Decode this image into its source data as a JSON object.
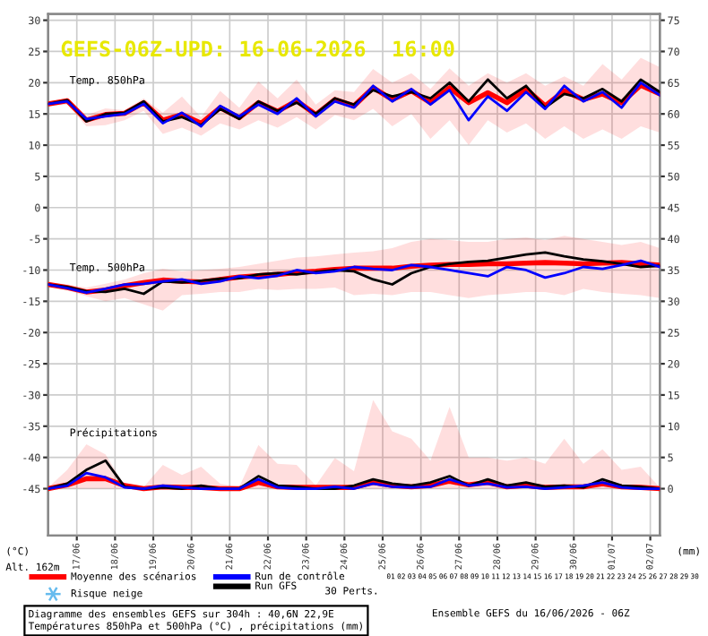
{
  "chart_data": {
    "type": "line",
    "title": "GEFS-06Z-UPD: 16-06-2026  16:00",
    "ylabel": "(°C)",
    "y2label": "(mm)",
    "x": [
      "2026-06-16T06:00",
      "2026-06-16T18:00",
      "2026-06-17T06:00",
      "2026-06-17T18:00",
      "2026-06-18T06:00",
      "2026-06-18T18:00",
      "2026-06-19T06:00",
      "2026-06-19T18:00",
      "2026-06-20T06:00",
      "2026-06-20T18:00",
      "2026-06-21T06:00",
      "2026-06-21T18:00",
      "2026-06-22T06:00",
      "2026-06-22T18:00",
      "2026-06-23T06:00",
      "2026-06-23T18:00",
      "2026-06-24T06:00",
      "2026-06-24T18:00",
      "2026-06-25T06:00",
      "2026-06-25T18:00",
      "2026-06-26T06:00",
      "2026-06-26T18:00",
      "2026-06-27T06:00",
      "2026-06-27T18:00",
      "2026-06-28T06:00",
      "2026-06-28T18:00",
      "2026-06-29T06:00",
      "2026-06-29T18:00",
      "2026-06-30T06:00",
      "2026-06-30T18:00",
      "2026-07-01T06:00",
      "2026-07-01T18:00",
      "2026-07-02T06:00"
    ],
    "series": [
      {
        "name": "Moyenne des scénarios",
        "color": "#ff0000",
        "values": [
          16.6,
          17.1,
          14.0,
          14.9,
          15.1,
          16.8,
          14.0,
          14.9,
          13.5,
          16.0,
          14.4,
          16.8,
          15.4,
          17.1,
          14.9,
          17.3,
          16.3,
          19.2,
          17.3,
          18.7,
          16.8,
          19.2,
          16.8,
          18.4,
          16.8,
          19.0,
          16.3,
          18.7,
          17.3,
          18.2,
          16.8,
          19.6,
          18.2
        ],
        "upper": [
          16.8,
          17.6,
          14.8,
          15.9,
          15.6,
          17.5,
          15.2,
          17.8,
          14.5,
          18.7,
          16.0,
          20.2,
          17.5,
          20.5,
          16.5,
          18.8,
          18.5,
          22.2,
          20.0,
          21.5,
          19.0,
          22.3,
          19.5,
          21.5,
          20.0,
          21.5,
          19.5,
          21.0,
          19.5,
          23.0,
          20.5,
          24.0,
          22.5
        ],
        "lower": [
          16.2,
          16.5,
          13.0,
          13.2,
          14.0,
          15.5,
          11.8,
          12.8,
          11.5,
          13.5,
          12.5,
          14.0,
          12.8,
          14.5,
          12.5,
          14.8,
          14.0,
          15.8,
          13.0,
          15.0,
          11.0,
          14.0,
          10.0,
          14.0,
          12.0,
          13.5,
          11.0,
          13.0,
          11.0,
          12.5,
          11.0,
          13.0,
          12.0
        ]
      },
      {
        "name": "Run de contrôle",
        "color": "#0000ff",
        "values": [
          16.6,
          17.0,
          14.2,
          14.6,
          15.0,
          16.6,
          13.5,
          15.2,
          13.0,
          16.3,
          14.6,
          16.5,
          15.0,
          17.5,
          14.6,
          17.0,
          16.0,
          19.5,
          17.0,
          19.0,
          16.5,
          18.8,
          14.0,
          17.8,
          15.5,
          18.5,
          15.8,
          19.5,
          17.0,
          18.5,
          16.0,
          20.0,
          18.0
        ]
      },
      {
        "name": "Run GFS",
        "color": "#000000",
        "values": [
          16.6,
          17.2,
          13.8,
          15.0,
          15.2,
          17.0,
          13.8,
          14.5,
          13.2,
          15.8,
          14.2,
          17.0,
          15.5,
          16.8,
          15.0,
          17.5,
          16.5,
          18.8,
          17.8,
          18.5,
          17.5,
          20.0,
          17.0,
          20.5,
          17.5,
          19.5,
          16.0,
          18.2,
          17.5,
          19.0,
          17.0,
          20.5,
          18.5
        ]
      },
      {
        "color": "#ff0000",
        "values": [
          -12.3,
          -12.8,
          -13.5,
          -13.2,
          -12.5,
          -12.0,
          -11.6,
          -11.8,
          -11.9,
          -11.5,
          -11.1,
          -10.9,
          -10.7,
          -10.4,
          -10.2,
          -9.9,
          -9.7,
          -9.7,
          -9.7,
          -9.4,
          -9.2,
          -9.1,
          -9.1,
          -9.0,
          -9.0,
          -8.9,
          -8.8,
          -8.9,
          -9.0,
          -8.9,
          -8.8,
          -9.0,
          -9.2
        ],
        "upper": [
          -12.0,
          -12.3,
          -12.8,
          -12.2,
          -11.5,
          -10.5,
          -9.8,
          -10.2,
          -10.0,
          -9.8,
          -9.5,
          -9.0,
          -8.5,
          -8.0,
          -7.8,
          -7.5,
          -7.2,
          -7.0,
          -6.5,
          -5.5,
          -5.0,
          -5.2,
          -5.5,
          -5.5,
          -5.0,
          -4.8,
          -5.2,
          -4.5,
          -5.0,
          -5.5,
          -6.0,
          -5.5,
          -6.5
        ],
        "lower": [
          -12.6,
          -13.2,
          -14.2,
          -15.0,
          -14.5,
          -15.5,
          -16.5,
          -14.0,
          -13.8,
          -13.5,
          -13.5,
          -13.0,
          -13.2,
          -13.0,
          -13.0,
          -12.8,
          -14.0,
          -13.8,
          -14.0,
          -13.5,
          -13.5,
          -14.0,
          -14.5,
          -14.0,
          -13.8,
          -13.5,
          -13.5,
          -14.0,
          -13.0,
          -13.5,
          -13.8,
          -14.0,
          -14.5
        ]
      },
      {
        "color": "#0000ff",
        "values": [
          -12.3,
          -12.9,
          -13.6,
          -13.0,
          -12.3,
          -12.2,
          -11.8,
          -11.5,
          -12.2,
          -11.8,
          -11.0,
          -11.3,
          -10.9,
          -10.0,
          -10.5,
          -10.2,
          -9.5,
          -9.8,
          -10.0,
          -9.2,
          -9.5,
          -10.0,
          -10.5,
          -11.0,
          -9.5,
          -10.0,
          -11.2,
          -10.5,
          -9.5,
          -9.8,
          -9.2,
          -8.5,
          -9.5
        ]
      },
      {
        "color": "#000000",
        "values": [
          -12.3,
          -12.7,
          -13.4,
          -13.5,
          -13.0,
          -13.8,
          -11.8,
          -12.0,
          -11.7,
          -11.4,
          -11.3,
          -10.7,
          -10.5,
          -10.7,
          -10.3,
          -10.0,
          -10.2,
          -11.5,
          -12.3,
          -10.5,
          -9.5,
          -9.0,
          -8.7,
          -8.5,
          -8.0,
          -7.5,
          -7.2,
          -7.8,
          -8.3,
          -8.6,
          -9.0,
          -9.5,
          -9.3
        ]
      },
      {
        "color": "#ff0000",
        "axis": "y2",
        "values": [
          0,
          0.6,
          1.6,
          1.6,
          0.5,
          0,
          0.3,
          0.2,
          0.2,
          0,
          0,
          1.0,
          0.3,
          0.2,
          0.2,
          0.2,
          0.2,
          1.0,
          0.5,
          0.3,
          0.5,
          1.2,
          0.6,
          1.0,
          0.3,
          0.5,
          0.2,
          0.3,
          0.3,
          0.8,
          0.3,
          0.2,
          0
        ],
        "upper": [
          0.2,
          3.0,
          7.1,
          5.5,
          0.5,
          0.3,
          3.8,
          2.2,
          3.5,
          0.8,
          0.3,
          7.0,
          4.0,
          3.8,
          0.5,
          4.9,
          2.8,
          14.2,
          9.2,
          8.0,
          4.5,
          13.1,
          5.0,
          5.0,
          4.5,
          5.0,
          4.0,
          8.0,
          4.0,
          6.3,
          3.0,
          3.5,
          0.2
        ],
        "lower": [
          0,
          0,
          0,
          0,
          0,
          0,
          0,
          0,
          0,
          0,
          0,
          0,
          0,
          0,
          0,
          0,
          0,
          0,
          0,
          0,
          0,
          0,
          0,
          0,
          0,
          0,
          0,
          0,
          0,
          0,
          0,
          0,
          0
        ]
      },
      {
        "color": "#0000ff",
        "axis": "y2",
        "values": [
          0,
          0.5,
          2.5,
          1.8,
          0.2,
          0,
          0.5,
          0.2,
          0,
          0,
          0,
          1.5,
          0.2,
          0,
          0,
          0.3,
          0,
          0.8,
          0.3,
          0.2,
          0.3,
          1.5,
          0.5,
          0.8,
          0.2,
          0.3,
          0,
          0.2,
          0.5,
          1.0,
          0.2,
          0,
          0
        ]
      },
      {
        "color": "#000000",
        "axis": "y2",
        "values": [
          0,
          0.8,
          3.0,
          4.5,
          0.3,
          0,
          0.2,
          0,
          0.5,
          0,
          0,
          2.0,
          0.5,
          0.3,
          0,
          0,
          0.5,
          1.5,
          0.8,
          0.5,
          1.0,
          2.0,
          0.5,
          1.5,
          0.5,
          1.0,
          0.3,
          0.5,
          0.2,
          1.5,
          0.5,
          0.3,
          0
        ]
      }
    ],
    "xlim": [
      "2026-06-16T06:00",
      "2026-07-02T06:00"
    ],
    "xticks": [
      {
        "value": "2026-06-17",
        "label": "17/06"
      },
      {
        "value": "2026-06-18",
        "label": "18/06"
      },
      {
        "value": "2026-06-19",
        "label": "19/06"
      },
      {
        "value": "2026-06-20",
        "label": "20/06"
      },
      {
        "value": "2026-06-21",
        "label": "21/06"
      },
      {
        "value": "2026-06-22",
        "label": "22/06"
      },
      {
        "value": "2026-06-23",
        "label": "23/06"
      },
      {
        "value": "2026-06-24",
        "label": "24/06"
      },
      {
        "value": "2026-06-25",
        "label": "25/06"
      },
      {
        "value": "2026-06-26",
        "label": "26/06"
      },
      {
        "value": "2026-06-27",
        "label": "27/06"
      },
      {
        "value": "2026-06-28",
        "label": "28/06"
      },
      {
        "value": "2026-06-29",
        "label": "29/06"
      },
      {
        "value": "2026-06-30",
        "label": "30/06"
      },
      {
        "value": "2026-07-01",
        "label": "01/07"
      },
      {
        "value": "2026-07-02",
        "label": "02/07"
      }
    ],
    "ylim": [
      -52.5,
      31
    ],
    "yticks": [
      -45,
      -40,
      -35,
      -30,
      -25,
      -20,
      -15,
      -10,
      -5,
      0,
      5,
      10,
      15,
      20,
      25,
      30
    ],
    "y2lim": [
      -7.5,
      76
    ],
    "y2ticks": [
      0,
      5,
      10,
      15,
      20,
      25,
      30,
      35,
      40,
      45,
      50,
      55,
      60,
      65,
      70,
      75
    ],
    "grid": true,
    "legend": "bottom",
    "marker": "none",
    "line_style": "solid",
    "annotations": [
      "Temp. 850hPa",
      "Temp. 500hPa",
      "Précipitations",
      "Alt. 162m",
      "Risque neige",
      "Diagramme des ensembles GEFS sur 304h : 40,6N 22,9E",
      "Températures 850hPa et 500hPa (°C) , précipitations (mm)",
      "Ensemble GEFS du 16/06/2026 - 06Z",
      "30 Perts.",
      "01",
      "02",
      "03",
      "04",
      "05",
      "06",
      "07",
      "08",
      "09",
      "10",
      "11",
      "12",
      "13",
      "14",
      "15",
      "16",
      "17",
      "18",
      "19",
      "20",
      "21",
      "22",
      "23",
      "24",
      "25",
      "26",
      "27",
      "28",
      "29",
      "30"
    ]
  }
}
